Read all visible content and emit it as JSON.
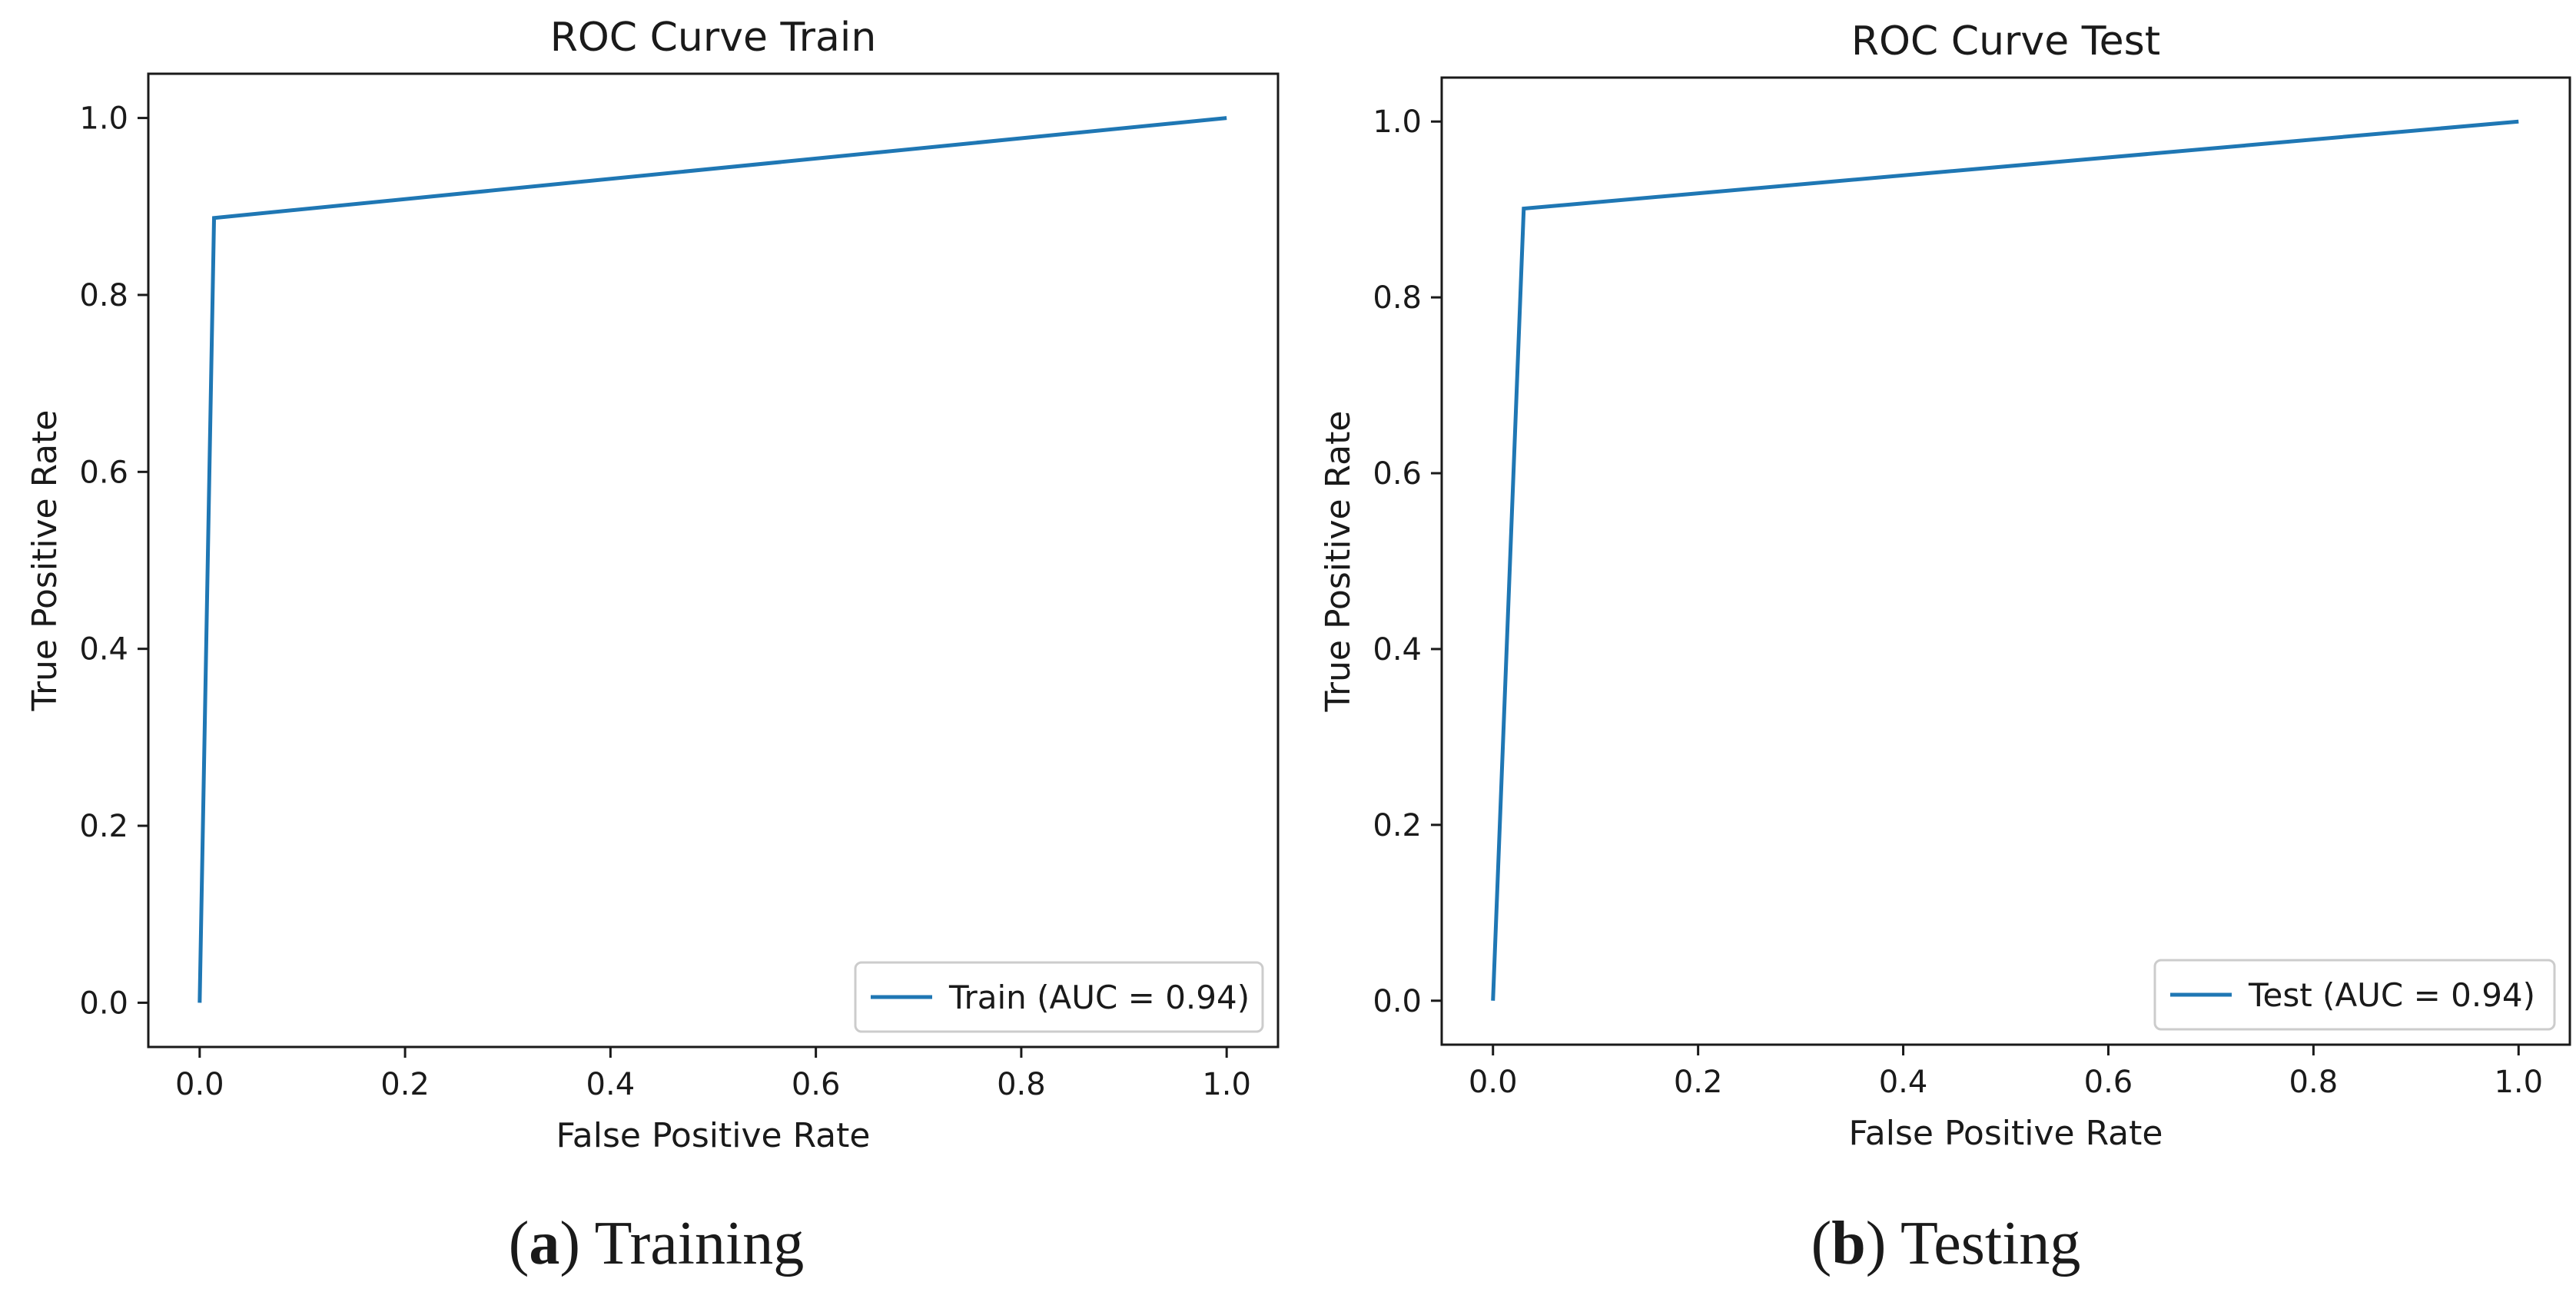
{
  "chart_data": [
    {
      "type": "line",
      "title": "ROC Curve Train",
      "xlabel": "False Positive Rate",
      "ylabel": "True Positive Rate",
      "xlim": [
        -0.05,
        1.05
      ],
      "ylim": [
        -0.05,
        1.05
      ],
      "xticks": [
        "0.0",
        "0.2",
        "0.4",
        "0.6",
        "0.8",
        "1.0"
      ],
      "yticks": [
        "0.0",
        "0.2",
        "0.4",
        "0.6",
        "0.8",
        "1.0"
      ],
      "grid": false,
      "legend_position": "lower-right",
      "series": [
        {
          "name": "Train (AUC = 0.94)",
          "color": "#1f77b4",
          "x": [
            0.0,
            0.014,
            1.0
          ],
          "y": [
            0.0,
            0.887,
            1.0
          ]
        }
      ],
      "caption": {
        "letter": "a",
        "text": "Training"
      }
    },
    {
      "type": "line",
      "title": "ROC Curve Test",
      "xlabel": "False Positive Rate",
      "ylabel": "True Positive Rate",
      "xlim": [
        -0.05,
        1.05
      ],
      "ylim": [
        -0.05,
        1.05
      ],
      "xticks": [
        "0.0",
        "0.2",
        "0.4",
        "0.6",
        "0.8",
        "1.0"
      ],
      "yticks": [
        "0.0",
        "0.2",
        "0.4",
        "0.6",
        "0.8",
        "1.0"
      ],
      "grid": false,
      "legend_position": "lower-right",
      "series": [
        {
          "name": "Test (AUC = 0.94)",
          "color": "#1f77b4",
          "x": [
            0.0,
            0.03,
            1.0
          ],
          "y": [
            0.0,
            0.901,
            1.0
          ]
        }
      ],
      "caption": {
        "letter": "b",
        "text": "Testing"
      }
    }
  ]
}
